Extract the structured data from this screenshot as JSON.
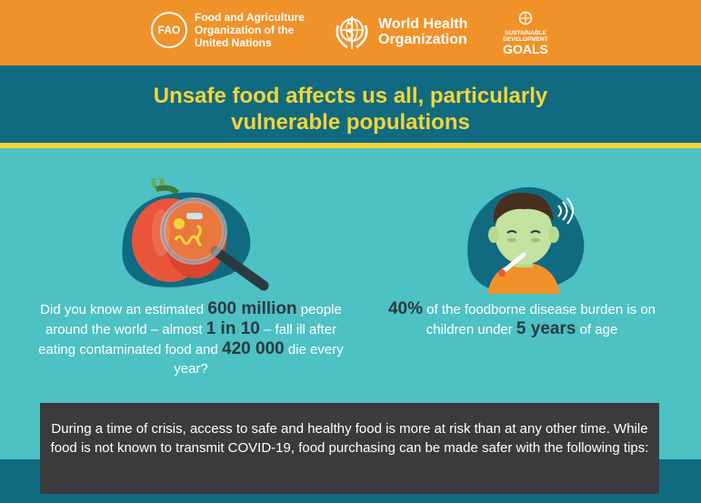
{
  "header": {
    "fao_abbr": "FAO",
    "fao_name_lines": [
      "Food and Agriculture",
      "Organization of the",
      "United Nations"
    ],
    "who_name_lines": [
      "World Health",
      "Organization"
    ],
    "sdg_lines": [
      "SUSTAINABLE",
      "DEVELOPMENT"
    ],
    "sdg_goals": "GOALS",
    "background_color": "#f0922a"
  },
  "title": {
    "line1": "Unsafe food affects us all, particularly",
    "line2": "vulnerable populations",
    "color": "#f5d43a",
    "band_color": "#106b80"
  },
  "stat_left": {
    "icon": "pepper-under-magnifying-glass",
    "t1": "Did you know an estimated ",
    "n1": "600 million",
    "t2": " people around the world – almost ",
    "n2": "1 in 10",
    "t3": " – fall ill after eating contaminated food and ",
    "n3": "420 000",
    "t4": " die every year?"
  },
  "stat_right": {
    "icon": "sick-child-with-thermometer",
    "n1": "40%",
    "t1": " of the foodborne disease burden is on children under ",
    "n2": "5 years",
    "t2": " of age"
  },
  "tip_box": {
    "text": "During a time of crisis, access to safe and healthy food is more at risk than at any other time. While food is not known to transmit COVID-19, food purchasing can be made safer with the following tips:",
    "background_color": "#3b3b3d"
  },
  "page_background": "#4dc1c4"
}
